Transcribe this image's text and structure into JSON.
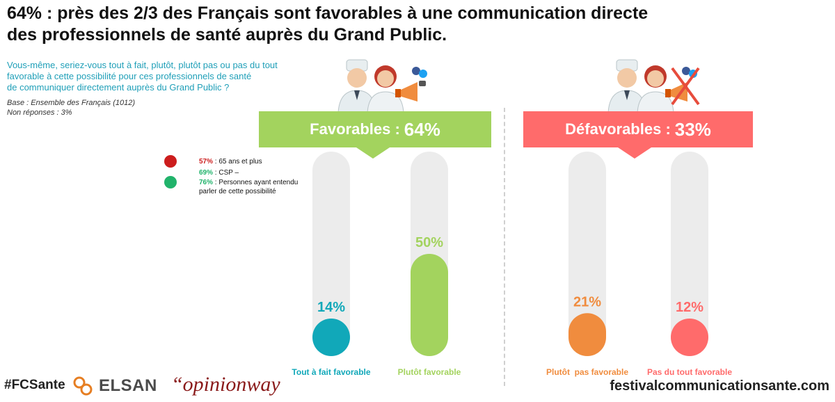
{
  "title": {
    "line1": "64% : près des 2/3 des Français sont favorables à une communication directe",
    "line2": "des professionnels de santé auprès du Grand Public."
  },
  "question": {
    "line1": "Vous-même, seriez-vous tout à fait, plutôt, plutôt pas ou pas du tout",
    "line2": "favorable à cette possibilité pour ces professionnels de santé",
    "line3": "de communiquer directement auprès du Grand Public ?"
  },
  "base": {
    "line1": "Base : Ensemble des Français (1012)",
    "line2": "Non réponses : 3%"
  },
  "legend": [
    {
      "pct": "57%",
      "label": " : 65 ans et plus",
      "color": "#cc1d1d"
    },
    {
      "pct": "69%",
      "label": " : CSP –",
      "color": "#21b36b"
    },
    {
      "pct": "76%",
      "label": " : Personnes ayant entendu",
      "label2": "parler de cette possibilité",
      "color": "#21b36b"
    }
  ],
  "banners": {
    "favorable": {
      "label": "Favorables :",
      "pct": "64%",
      "color": "#a3d35e"
    },
    "defavorable": {
      "label": "Défavorables :",
      "pct": "33%",
      "color": "#ff6b6b"
    }
  },
  "chart_data": {
    "type": "bar",
    "ylim": [
      0,
      100
    ],
    "categories": [
      "Tout à fait favorable",
      "Plutôt favorable",
      "Plutôt  pas favorable",
      "Pas du tout favorable"
    ],
    "values": [
      14,
      50,
      21,
      12
    ],
    "value_labels": [
      "14%",
      "50%",
      "21%",
      "12%"
    ],
    "colors": [
      "#11a8b9",
      "#a3d35e",
      "#f08c3e",
      "#ff6b6b"
    ]
  },
  "icons": [
    "doctors-megaphone-icon",
    "doctors-megaphone-crossed-icon"
  ],
  "footer": {
    "hashtag": "#FCSante",
    "elsan": "ELSAN",
    "opinionway": "“opinionway",
    "site": "festivalcommunicationsante.com"
  }
}
